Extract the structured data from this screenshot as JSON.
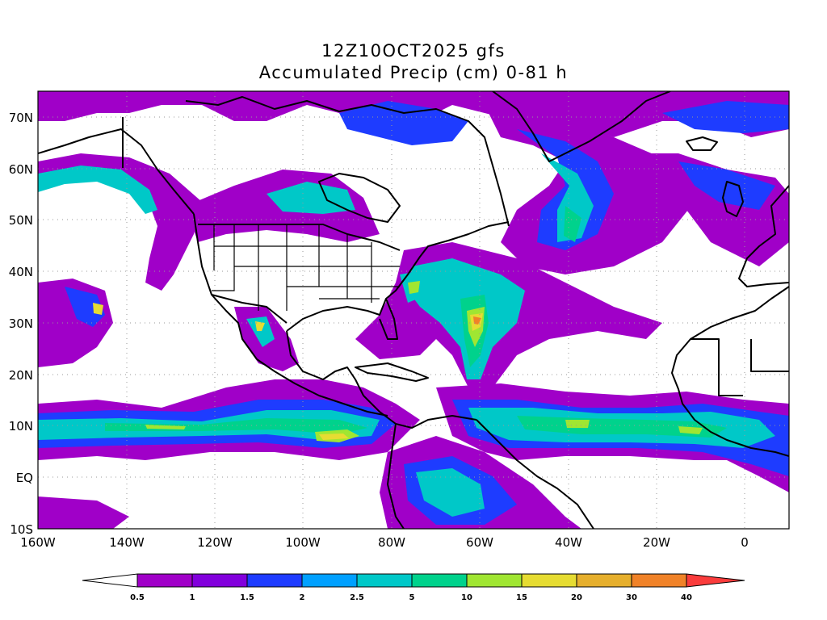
{
  "title": {
    "line1": "12Z10OCT2025 gfs",
    "line2": "Accumulated Precip (cm) 0-81 h"
  },
  "map": {
    "lon_range": [
      -160,
      10
    ],
    "lat_range": [
      -10,
      75
    ],
    "gridlines": "dotted",
    "lat_ticks": [
      {
        "value": 70,
        "label": "70N"
      },
      {
        "value": 60,
        "label": "60N"
      },
      {
        "value": 50,
        "label": "50N"
      },
      {
        "value": 40,
        "label": "40N"
      },
      {
        "value": 30,
        "label": "30N"
      },
      {
        "value": 20,
        "label": "20N"
      },
      {
        "value": 10,
        "label": "10N"
      },
      {
        "value": 0,
        "label": "EQ"
      },
      {
        "value": -10,
        "label": "10S"
      }
    ],
    "lon_ticks": [
      {
        "value": -160,
        "label": "160W"
      },
      {
        "value": -140,
        "label": "140W"
      },
      {
        "value": -120,
        "label": "120W"
      },
      {
        "value": -100,
        "label": "100W"
      },
      {
        "value": -80,
        "label": "80W"
      },
      {
        "value": -60,
        "label": "60W"
      },
      {
        "value": -40,
        "label": "40W"
      },
      {
        "value": -20,
        "label": "20W"
      },
      {
        "value": 0,
        "label": "0"
      }
    ]
  },
  "colorbar": {
    "levels": [
      "0.5",
      "1",
      "1.5",
      "2",
      "2.5",
      "5",
      "10",
      "15",
      "20",
      "30",
      "40"
    ],
    "colors": [
      "#a000c8",
      "#8200dc",
      "#1e3cff",
      "#00a0ff",
      "#00c8c8",
      "#00d28c",
      "#a0e632",
      "#e6dc32",
      "#e6af2d",
      "#f08228",
      "#fa3c3c"
    ]
  },
  "colors": {
    "purple_light": "#a000c8",
    "violet": "#8200dc",
    "blue": "#1e3cff",
    "sky": "#00a0ff",
    "cyan": "#00c8c8",
    "teal": "#00d28c",
    "lime": "#a0e632",
    "yellow": "#e6dc32",
    "orange": "#e6af2d",
    "dark_orange": "#f08228",
    "red": "#fa3c3c"
  }
}
